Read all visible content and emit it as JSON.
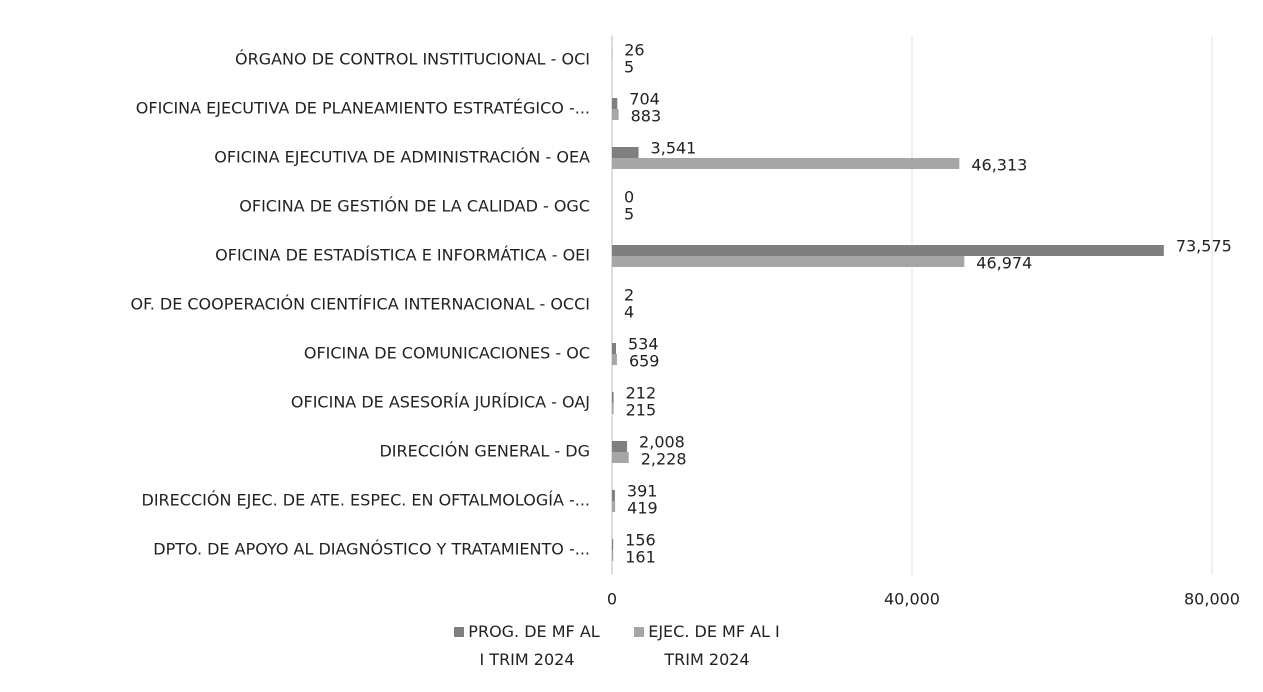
{
  "chart_data": {
    "type": "hbar",
    "categories": [
      "ÓRGANO DE CONTROL INSTITUCIONAL - OCI",
      "OFICINA EJECUTIVA DE PLANEAMIENTO ESTRATÉGICO -...",
      "OFICINA EJECUTIVA DE ADMINISTRACIÓN - OEA",
      "OFICINA DE GESTIÓN DE LA CALIDAD - OGC",
      "OFICINA DE ESTADÍSTICA E INFORMÁTICA - OEI",
      "OF. DE COOPERACIÓN CIENTÍFICA INTERNACIONAL - OCCI",
      "OFICINA DE COMUNICACIONES - OC",
      "OFICINA DE ASESORÍA JURÍDICA - OAJ",
      "DIRECCIÓN GENERAL - DG",
      "DIRECCIÓN EJEC. DE ATE. ESPEC. EN OFTALMOLOGÍA -...",
      "DPTO. DE APOYO AL DIAGNÓSTICO Y TRATAMIENTO -..."
    ],
    "series": [
      {
        "name": "PROG. DE MF AL I TRIM 2024",
        "color": "#7f7f7f",
        "values": [
          26,
          704,
          3541,
          0,
          73575,
          2,
          534,
          212,
          2008,
          391,
          156
        ],
        "value_labels": [
          "26",
          "704",
          "3,541",
          "0",
          "73,575",
          "2",
          "534",
          "212",
          "2,008",
          "391",
          "156"
        ]
      },
      {
        "name": "EJEC. DE MF AL I TRIM 2024",
        "color": "#a6a6a6",
        "values": [
          5,
          883,
          46313,
          5,
          46974,
          4,
          659,
          215,
          2228,
          419,
          161
        ],
        "value_labels": [
          "5",
          "883",
          "46,313",
          "5",
          "46,974",
          "4",
          "659",
          "215",
          "2,228",
          "419",
          "161"
        ]
      }
    ],
    "xlim": [
      0,
      80000
    ],
    "xticks": [
      0,
      {
        "value": 40000,
        "label": "40,000"
      },
      {
        "value": 80000,
        "label": "80,000"
      }
    ],
    "grid": true,
    "legend": "bottom"
  }
}
